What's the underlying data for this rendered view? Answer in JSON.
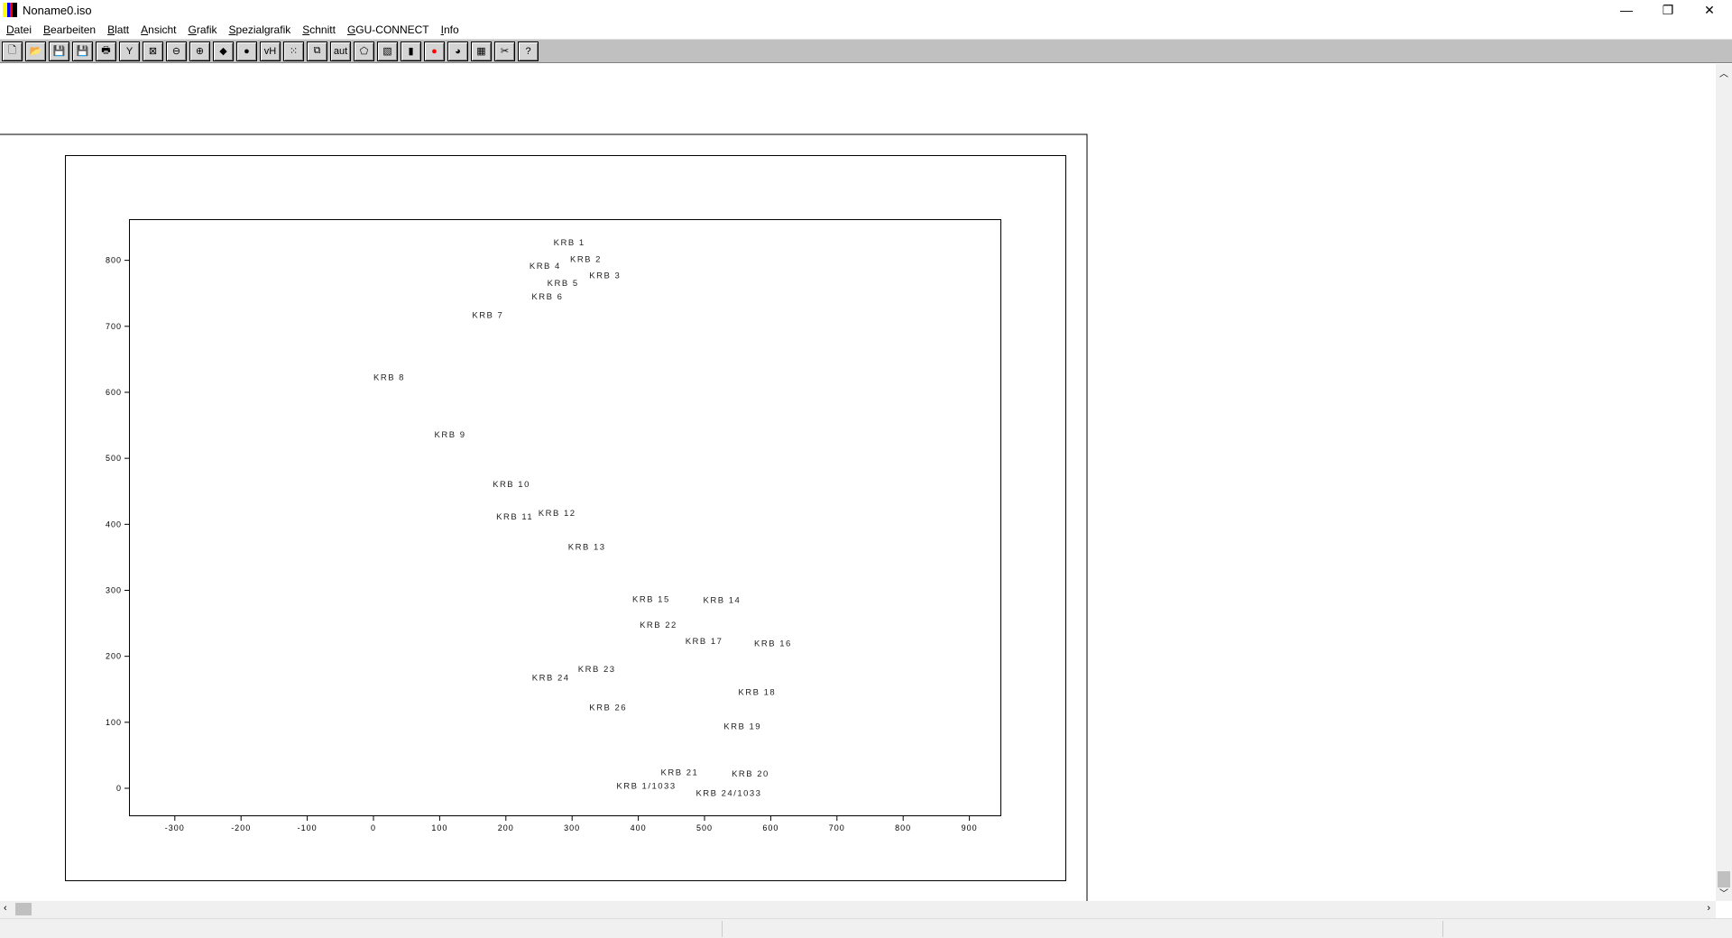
{
  "window": {
    "title": "Noname0.iso",
    "minimize": "—",
    "restore": "❐",
    "close": "✕"
  },
  "menu": [
    "Datei",
    "Bearbeiten",
    "Blatt",
    "Ansicht",
    "Grafik",
    "Spezialgrafik",
    "Schnitt",
    "GGU-CONNECT",
    "Info"
  ],
  "toolbar": [
    {
      "name": "new-icon",
      "glyph": "🗋"
    },
    {
      "name": "open-icon",
      "glyph": "📂"
    },
    {
      "name": "save-icon",
      "glyph": "💾"
    },
    {
      "name": "save-as-icon",
      "glyph": "💾"
    },
    {
      "name": "print-icon",
      "glyph": "🖶"
    },
    {
      "name": "tool-icon",
      "glyph": "Y"
    },
    {
      "name": "zoom-reset-icon",
      "glyph": "⊠"
    },
    {
      "name": "zoom-out-icon",
      "glyph": "⊖"
    },
    {
      "name": "zoom-in-icon",
      "glyph": "⊕"
    },
    {
      "name": "shapes-icon",
      "glyph": "◆"
    },
    {
      "name": "legend-icon",
      "glyph": "●"
    },
    {
      "name": "vh-icon",
      "glyph": "vH"
    },
    {
      "name": "points-icon",
      "glyph": "⁙"
    },
    {
      "name": "copy-icon",
      "glyph": "⧉"
    },
    {
      "name": "aut-icon",
      "glyph": "aut"
    },
    {
      "name": "polygon-icon",
      "glyph": "⬠"
    },
    {
      "name": "contour-icon",
      "glyph": "▧"
    },
    {
      "name": "bar-chart-icon",
      "glyph": "▮"
    },
    {
      "name": "circle-icon",
      "glyph": "●"
    },
    {
      "name": "pie-icon",
      "glyph": "◕"
    },
    {
      "name": "table-icon",
      "glyph": "▦"
    },
    {
      "name": "cut-icon",
      "glyph": "✂"
    },
    {
      "name": "help-icon",
      "glyph": "?"
    }
  ],
  "colors": {
    "label": "#222222",
    "toolbar": "#c0c0c0",
    "red": "#ff0000"
  },
  "chart_data": {
    "type": "scatter",
    "xlim": [
      -370,
      950
    ],
    "ylim": [
      -40,
      860
    ],
    "xticks": [
      -300,
      -200,
      -100,
      0,
      100,
      200,
      300,
      400,
      500,
      600,
      700,
      800,
      900
    ],
    "yticks": [
      0,
      100,
      200,
      300,
      400,
      500,
      600,
      700,
      800
    ],
    "points": [
      {
        "label": "KRB 1",
        "x": 272,
        "y": 828
      },
      {
        "label": "KRB 2",
        "x": 297,
        "y": 803
      },
      {
        "label": "KRB 4",
        "x": 290,
        "y": 793
      },
      {
        "label": "KRB 3",
        "x": 326,
        "y": 778
      },
      {
        "label": "KRB 5",
        "x": 317,
        "y": 767
      },
      {
        "label": "KRB 6",
        "x": 239,
        "y": 746
      },
      {
        "label": "KRB 7",
        "x": 149,
        "y": 718
      },
      {
        "label": "KRB 8",
        "x": 0,
        "y": 624
      },
      {
        "label": "KRB 9",
        "x": 92,
        "y": 537
      },
      {
        "label": "KRB 10",
        "x": 180,
        "y": 462
      },
      {
        "label": "KRB 12",
        "x": 249,
        "y": 418
      },
      {
        "label": "KRB 11",
        "x": 240,
        "y": 413
      },
      {
        "label": "KRB 13",
        "x": 294,
        "y": 367
      },
      {
        "label": "KRB 15",
        "x": 391,
        "y": 288
      },
      {
        "label": "KRB 14",
        "x": 389,
        "y": 286
      },
      {
        "label": "KRB 22",
        "x": 402,
        "y": 249
      },
      {
        "label": "KRB 17",
        "x": 471,
        "y": 224
      },
      {
        "label": "KRB 16",
        "x": 466,
        "y": 221
      },
      {
        "label": "KRB 23",
        "x": 309,
        "y": 182
      },
      {
        "label": "KRB 24",
        "x": 294,
        "y": 169
      },
      {
        "label": "KRB 26",
        "x": 326,
        "y": 124
      },
      {
        "label": "KRB 18",
        "x": 551,
        "y": 147
      },
      {
        "label": "KRB 19",
        "x": 529,
        "y": 95
      },
      {
        "label": "KRB 21",
        "x": 434,
        "y": 25
      },
      {
        "label": "KRB 20",
        "x": 541,
        "y": 23
      },
      {
        "label": "KRB 24/1033",
        "x": 487,
        "y": 10
      },
      {
        "label": "KRB 1/1033",
        "x": 476,
        "y": 5
      }
    ]
  }
}
